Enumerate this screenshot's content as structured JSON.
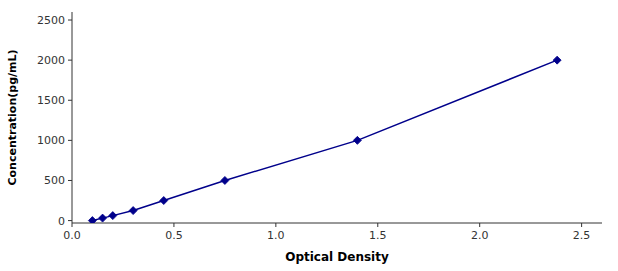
{
  "chart_data": {
    "type": "line",
    "x": [
      0.1,
      0.15,
      0.2,
      0.3,
      0.45,
      0.75,
      1.4,
      2.38
    ],
    "values": [
      0,
      31,
      62,
      125,
      250,
      500,
      1000,
      2000
    ],
    "color": "#00008B",
    "marker": "diamond",
    "xlabel": "Optical Density",
    "ylabel": "Concentration(pg/mL)",
    "xlim": [
      0.0,
      2.6
    ],
    "ylim": [
      -30,
      2600
    ],
    "xticks": [
      {
        "value": 0,
        "label": "0.0"
      },
      0.5,
      {
        "value": 1,
        "label": "1.0"
      },
      1.5,
      {
        "value": 2,
        "label": "2.0"
      },
      2.5
    ],
    "yticks": [
      0,
      500,
      1000,
      1500,
      2000,
      2500
    ],
    "grid": false
  }
}
